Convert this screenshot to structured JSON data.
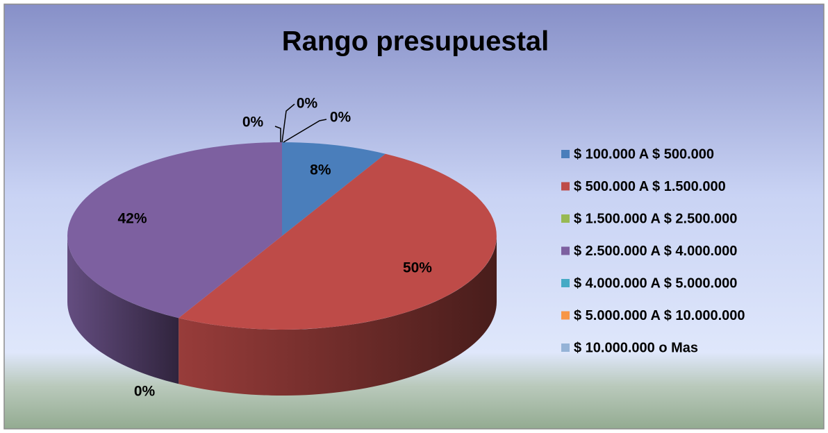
{
  "chart_data": {
    "type": "pie",
    "title": "Rango presupuestal",
    "categories": [
      "$ 100.000 A $ 500.000",
      "$ 500.000 A $ 1.500.000",
      "$ 1.500.000 A $ 2.500.000",
      "$ 2.500.000 A $ 4.000.000",
      "$ 4.000.000 A $ 5.000.000",
      "$ 5.000.000 A $ 10.000.000",
      "$ 10.000.000 o Mas"
    ],
    "values": [
      8,
      50,
      0,
      42,
      0,
      0,
      0
    ],
    "value_labels": [
      "8%",
      "50%",
      "0%",
      "42%",
      "0%",
      "0%",
      "0%"
    ],
    "colors": [
      "#4a7ebb",
      "#be4b48",
      "#98b954",
      "#7d60a0",
      "#46aac5",
      "#f79646",
      "#95b3d7"
    ],
    "legend": "right"
  }
}
